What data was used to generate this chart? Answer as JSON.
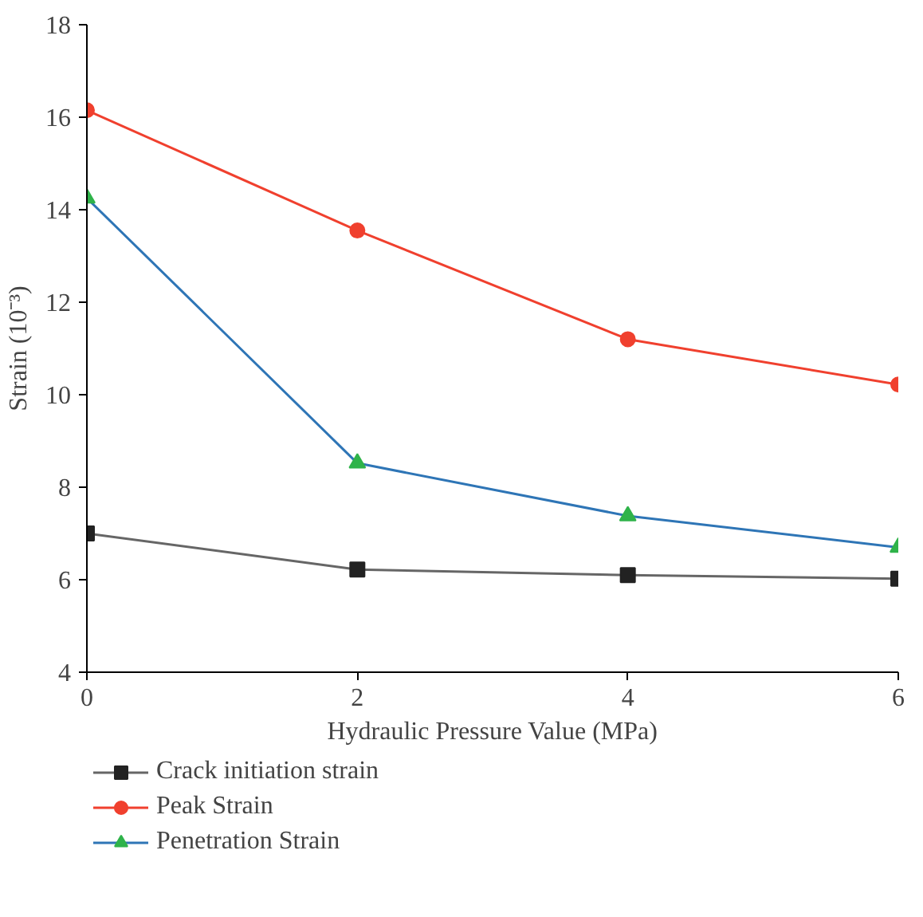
{
  "chart_data": {
    "type": "line",
    "xlabel": "Hydraulic Pressure Value (MPa)",
    "ylabel": "Strain (10⁻³)",
    "x": [
      0,
      2,
      4,
      6
    ],
    "xlim": [
      0,
      6
    ],
    "xticks": [
      0,
      2,
      4,
      6
    ],
    "ylim": [
      4,
      18
    ],
    "yticks": [
      4,
      6,
      8,
      10,
      12,
      14,
      16,
      18
    ],
    "legend": "bottom left",
    "series": [
      {
        "name": "Crack initiation strain",
        "color": "#666666",
        "colors": [
          "#222222",
          "#222222",
          "#222222",
          "#222222"
        ],
        "marker": "square",
        "values": [
          7.0,
          6.22,
          6.1,
          6.02
        ]
      },
      {
        "name": "Peak Strain",
        "color": "#f0402e",
        "marker": "circle",
        "values": [
          16.15,
          13.55,
          11.2,
          10.22
        ]
      },
      {
        "name": "Penetration Strain",
        "color": "#2e75b6",
        "colors": [
          "#2fb34a",
          "#2fb34a",
          "#2fb34a",
          "#2fb34a"
        ],
        "marker": "triangle",
        "values": [
          14.25,
          8.52,
          7.38,
          6.7
        ]
      }
    ]
  }
}
